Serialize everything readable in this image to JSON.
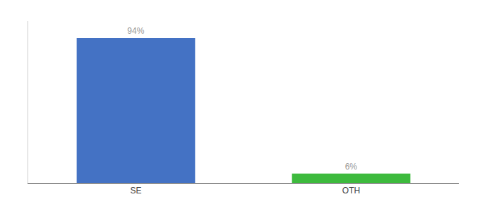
{
  "chart_data": {
    "type": "bar",
    "categories": [
      "SE",
      "OTH"
    ],
    "values": [
      94,
      6
    ],
    "value_labels": [
      "94%",
      "6%"
    ],
    "data_labels": true,
    "colors": [
      "#4472c4",
      "#3dba3d"
    ],
    "ylim": [
      0,
      105
    ],
    "yticks": [],
    "tick_labels": "x",
    "grid": false
  }
}
